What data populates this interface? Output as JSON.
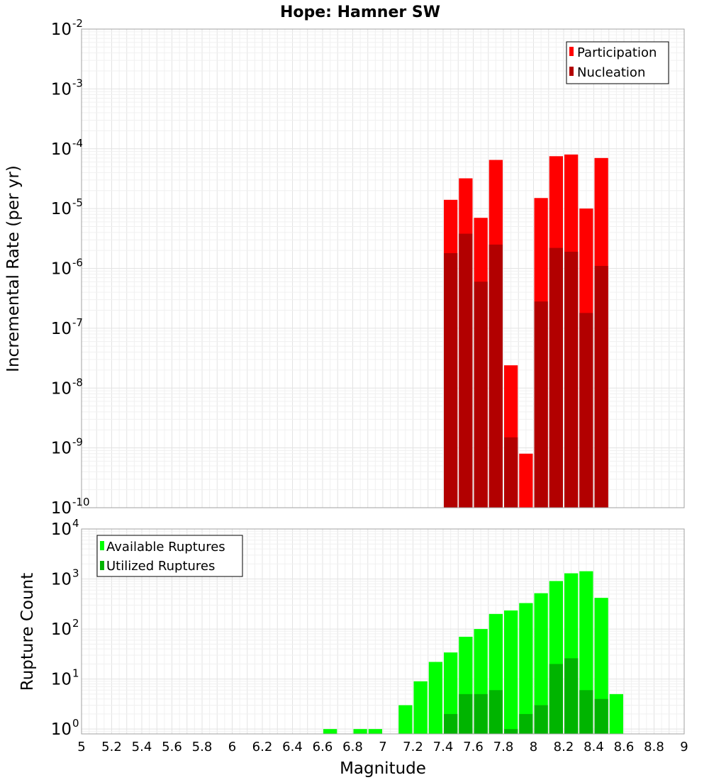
{
  "chart_data": [
    {
      "type": "bar",
      "title": "Hope: Hamner SW",
      "xlabel": "",
      "ylabel": "Incremental Rate (per yr)",
      "yscale": "log",
      "ylim": [
        1e-10,
        0.01
      ],
      "xlim": [
        5,
        9
      ],
      "y_tick_exponents": [
        "-10",
        "-9",
        "-8",
        "-7",
        "-6",
        "-5",
        "-4",
        "-3",
        "-2"
      ],
      "grid": true,
      "legend_position": "top-right",
      "x": [
        7.45,
        7.55,
        7.65,
        7.75,
        7.85,
        7.95,
        8.05,
        8.15,
        8.25,
        8.35,
        8.45
      ],
      "series": [
        {
          "name": "Participation",
          "color": "#ff0000",
          "values": [
            1.4e-05,
            3.2e-05,
            7e-06,
            6.5e-05,
            2.4e-08,
            8e-10,
            1.5e-05,
            7.5e-05,
            8e-05,
            1e-05,
            7e-05
          ]
        },
        {
          "name": "Nucleation",
          "color": "#b20000",
          "values": [
            1.8e-06,
            3.8e-06,
            6e-07,
            2.5e-06,
            1.5e-09,
            null,
            2.8e-07,
            2.2e-06,
            1.9e-06,
            1.8e-07,
            1.1e-06
          ]
        }
      ]
    },
    {
      "type": "bar",
      "title": "",
      "xlabel": "Magnitude",
      "ylabel": "Rupture Count",
      "yscale": "log",
      "ylim": [
        0.8,
        10000.0
      ],
      "xlim": [
        5,
        9
      ],
      "y_tick_exponents": [
        "0",
        "1",
        "2",
        "3",
        "4"
      ],
      "x_tick_labels": [
        "5",
        "5.2",
        "5.4",
        "5.6",
        "5.8",
        "6",
        "6.2",
        "6.4",
        "6.6",
        "6.8",
        "7",
        "7.2",
        "7.4",
        "7.6",
        "7.8",
        "8",
        "8.2",
        "8.4",
        "8.6",
        "8.8",
        "9"
      ],
      "grid": true,
      "legend_position": "top-left",
      "x": [
        6.65,
        6.85,
        6.95,
        7.15,
        7.25,
        7.35,
        7.45,
        7.55,
        7.65,
        7.75,
        7.85,
        7.95,
        8.05,
        8.15,
        8.25,
        8.35,
        8.45,
        8.55
      ],
      "series": [
        {
          "name": "Available Ruptures",
          "color": "#00ff00",
          "values": [
            1,
            1,
            1,
            3,
            9,
            22,
            34,
            70,
            100,
            200,
            235,
            330,
            520,
            910,
            1300,
            1430,
            420,
            5
          ]
        },
        {
          "name": "Utilized Ruptures",
          "color": "#00b400",
          "values": [
            null,
            null,
            null,
            null,
            null,
            null,
            2,
            5,
            5,
            6,
            1,
            2,
            3,
            20,
            26,
            6,
            4,
            null
          ]
        }
      ]
    }
  ]
}
